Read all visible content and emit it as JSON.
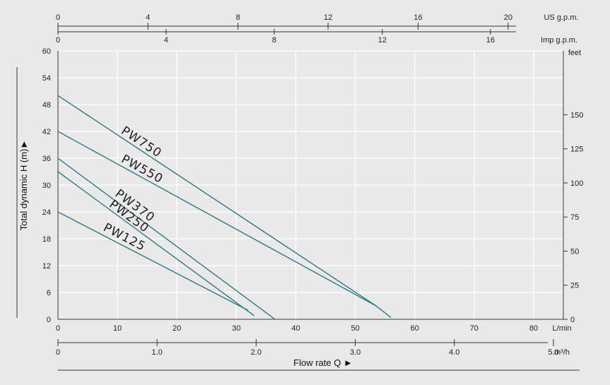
{
  "chart_data": {
    "type": "line",
    "title": "",
    "xlabel": "Flow rate Q ►",
    "ylabel": "Total dynamic H (m)►",
    "x_unit": "L/min",
    "xlim": [
      0,
      85
    ],
    "ylim": [
      0,
      60
    ],
    "x_ticks": [
      0,
      10,
      20,
      30,
      40,
      50,
      60,
      70,
      80
    ],
    "y_ticks": [
      0,
      6,
      12,
      18,
      24,
      30,
      36,
      42,
      48,
      54,
      60
    ],
    "grid": true,
    "secondary_axes": {
      "us_gpm": {
        "label": "US g.p.m.",
        "ticks": [
          0,
          4,
          8,
          12,
          16,
          20
        ]
      },
      "imp_gpm": {
        "label": "Imp g.p.m.",
        "ticks": [
          0,
          4,
          8,
          12,
          16
        ]
      },
      "feet": {
        "label": "feet",
        "ticks": [
          0,
          25,
          50,
          75,
          100,
          125,
          150
        ]
      },
      "m3h": {
        "label": "m³/h",
        "ticks": [
          "0",
          "1.0",
          "2.0",
          "3.0",
          "4.0",
          "5.0"
        ]
      }
    },
    "series": [
      {
        "name": "PW750",
        "x": [
          0,
          53.5,
          56
        ],
        "y": [
          50,
          3,
          0.4
        ]
      },
      {
        "name": "PW550",
        "x": [
          0,
          53.5
        ],
        "y": [
          42,
          3
        ]
      },
      {
        "name": "PW370",
        "x": [
          0,
          36.5
        ],
        "y": [
          36,
          0
        ]
      },
      {
        "name": "PW250",
        "x": [
          0,
          33
        ],
        "y": [
          33,
          0.8
        ]
      },
      {
        "name": "PW125",
        "x": [
          0,
          32
        ],
        "y": [
          24,
          2
        ]
      }
    ]
  },
  "colors": {
    "line": "#2f7a82",
    "background": "#e9e9e9",
    "grid": "#ffffff"
  }
}
